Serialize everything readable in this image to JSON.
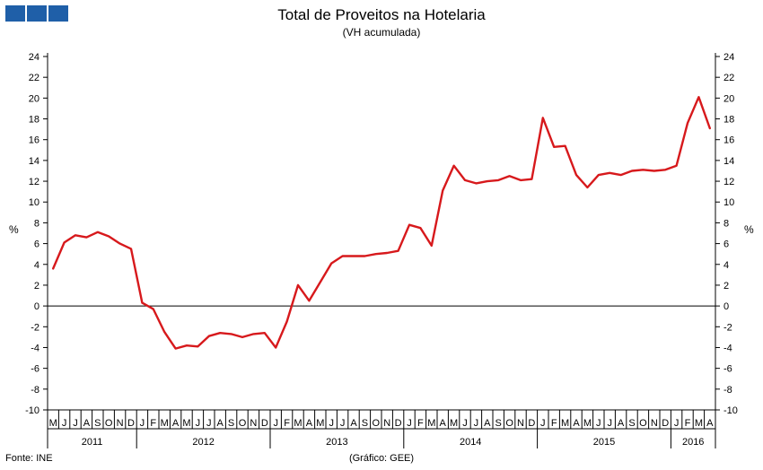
{
  "header": {
    "title": "Total de Proveitos na Hotelaria",
    "subtitle": "(VH acumulada)"
  },
  "logo": {
    "icon": "ine-logo-icon",
    "color": "#1f5fa8"
  },
  "footer": {
    "source": "Fonte: INE",
    "credit": "(Gráfico: GEE)"
  },
  "chart_data": {
    "type": "line",
    "title": "Total de Proveitos na Hotelaria",
    "subtitle": "(VH acumulada)",
    "ylabel_left": "%",
    "ylabel_right": "%",
    "ylim": [
      -10,
      24
    ],
    "yticks": [
      -10,
      -8,
      -6,
      -4,
      -2,
      0,
      2,
      4,
      6,
      8,
      10,
      12,
      14,
      16,
      18,
      20,
      22,
      24
    ],
    "grid": false,
    "line_color": "#d7191c",
    "x_months": [
      "M",
      "J",
      "J",
      "A",
      "S",
      "O",
      "N",
      "D",
      "J",
      "F",
      "M",
      "A",
      "M",
      "J",
      "J",
      "A",
      "S",
      "O",
      "N",
      "D",
      "J",
      "F",
      "M",
      "A",
      "M",
      "J",
      "J",
      "A",
      "S",
      "O",
      "N",
      "D",
      "J",
      "F",
      "M",
      "A",
      "M",
      "J",
      "J",
      "A",
      "S",
      "O",
      "N",
      "D",
      "J",
      "F",
      "M",
      "A",
      "M",
      "J",
      "J",
      "A",
      "S",
      "O",
      "N",
      "D",
      "J",
      "F",
      "M",
      "A"
    ],
    "years": [
      {
        "label": "2011",
        "months": 8
      },
      {
        "label": "2012",
        "months": 12
      },
      {
        "label": "2013",
        "months": 12
      },
      {
        "label": "2014",
        "months": 12
      },
      {
        "label": "2015",
        "months": 12
      },
      {
        "label": "2016",
        "months": 4
      }
    ],
    "series": [
      {
        "values": [
          3.6,
          6.1,
          6.8,
          6.6,
          7.1,
          6.7,
          6.0,
          5.5,
          0.3,
          -0.3,
          -2.5,
          -4.1,
          -3.8,
          -3.9,
          -2.9,
          -2.6,
          -2.7,
          -3.0,
          -2.7,
          -2.6,
          -4.0,
          -1.5,
          2.0,
          0.5,
          2.3,
          4.1,
          4.8,
          4.8,
          4.8,
          5.0,
          5.1,
          5.3,
          7.8,
          7.5,
          5.8,
          11.1,
          13.5,
          12.1,
          11.8,
          12.0,
          12.1,
          12.5,
          12.1,
          12.2,
          18.1,
          15.3,
          15.4,
          12.6,
          11.4,
          12.6,
          12.8,
          12.6,
          13.0,
          13.1,
          13.0,
          13.1,
          13.5,
          17.6,
          20.1,
          17.1
        ]
      }
    ]
  }
}
